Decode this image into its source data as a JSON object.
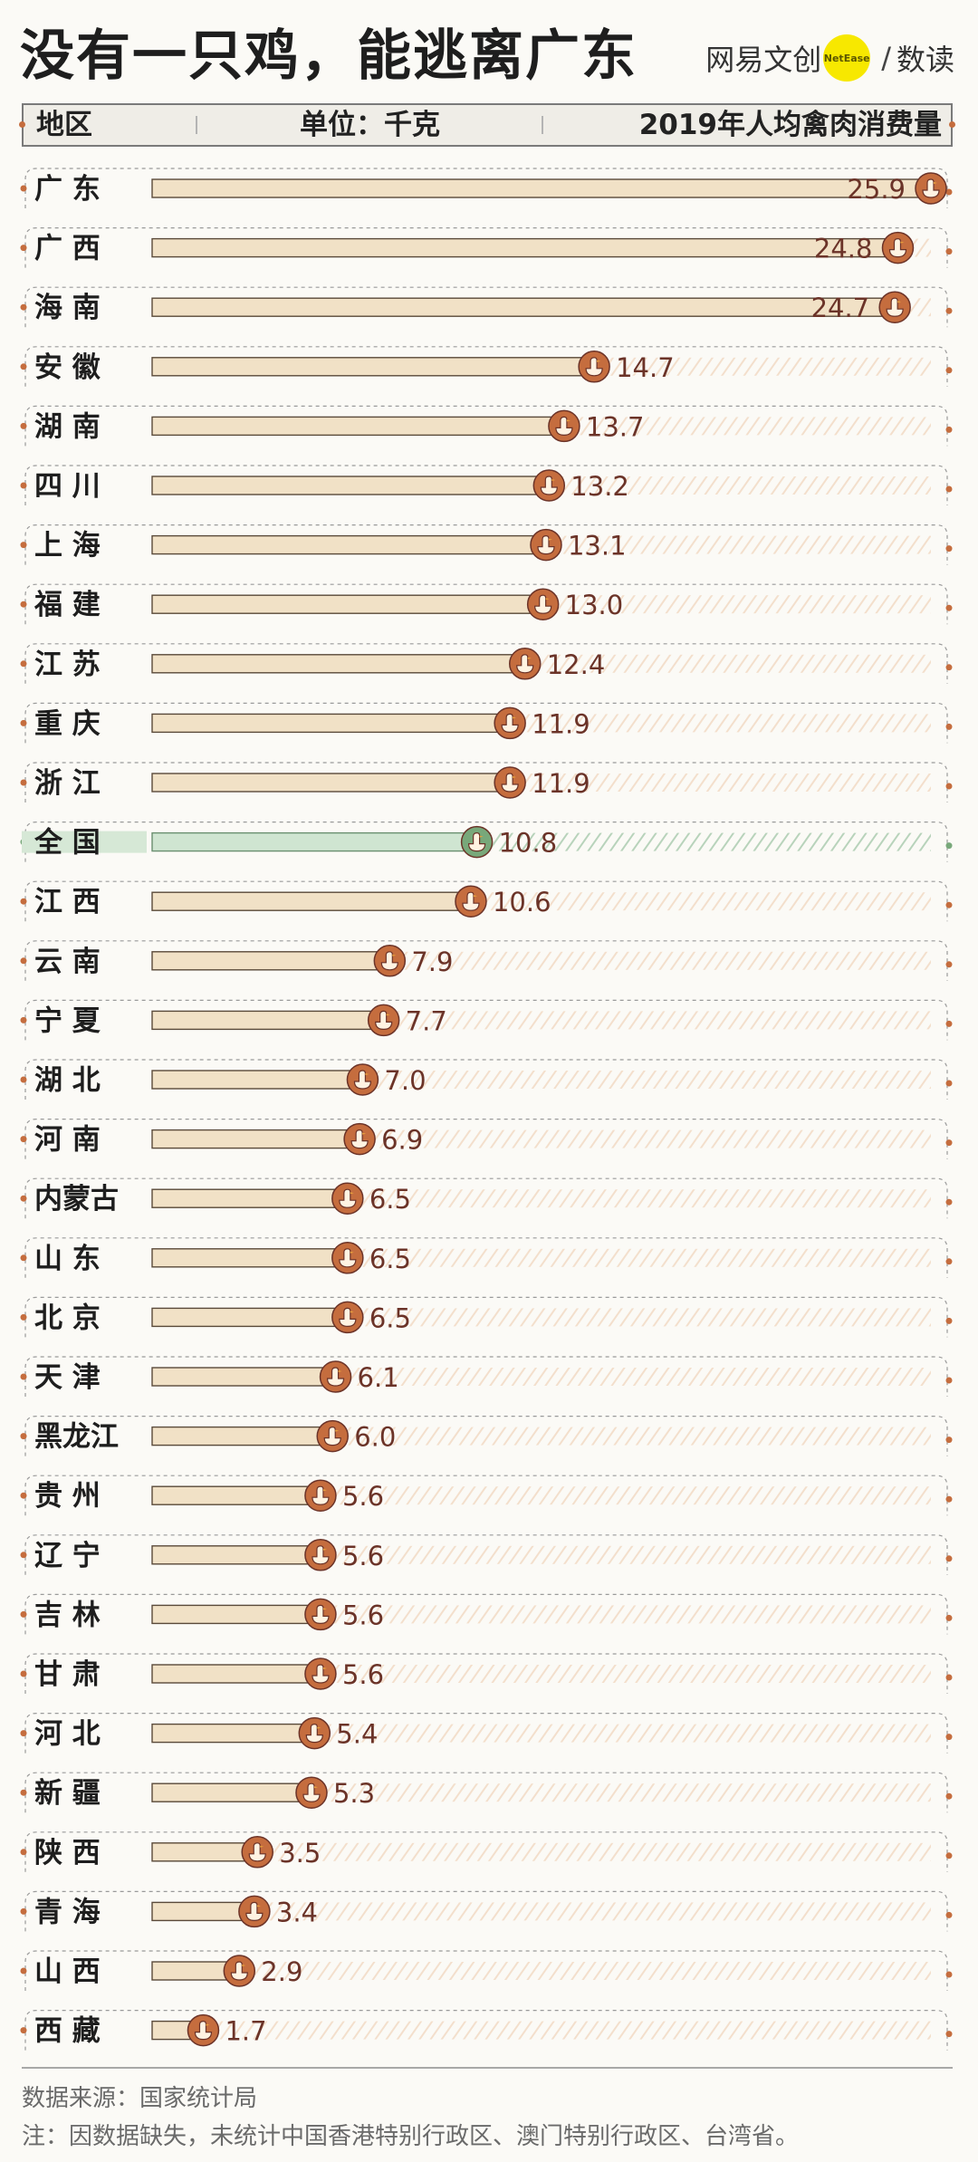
{
  "title": "没有一只鸡，能逃离广东",
  "brand": {
    "name": "网易文创",
    "badge": "NetEase",
    "sub": "数读"
  },
  "header": {
    "region": "地区",
    "unit": "单位：千克",
    "metric": "2019年人均禽肉消费量"
  },
  "chart_data": {
    "type": "bar",
    "orientation": "horizontal",
    "title": "没有一只鸡，能逃离广东",
    "xlabel": "2019年人均禽肉消费量",
    "unit": "单位：千克",
    "xlim": [
      0,
      25.9
    ],
    "categories": [
      "广 东",
      "广 西",
      "海 南",
      "安 徽",
      "湖 南",
      "四 川",
      "上 海",
      "福 建",
      "江 苏",
      "重 庆",
      "浙 江",
      "全 国",
      "江 西",
      "云 南",
      "宁 夏",
      "湖 北",
      "河 南",
      "内蒙古",
      "山 东",
      "北 京",
      "天 津",
      "黑龙江",
      "贵 州",
      "辽 宁",
      "吉 林",
      "甘 肃",
      "河 北",
      "新 疆",
      "陕 西",
      "青 海",
      "山 西",
      "西 藏"
    ],
    "values": [
      25.9,
      24.8,
      24.7,
      14.7,
      13.7,
      13.2,
      13.1,
      13.0,
      12.4,
      11.9,
      11.9,
      10.8,
      10.6,
      7.9,
      7.7,
      7.0,
      6.9,
      6.5,
      6.5,
      6.5,
      6.1,
      6.0,
      5.6,
      5.6,
      5.6,
      5.6,
      5.4,
      5.3,
      3.5,
      3.4,
      2.9,
      1.7
    ],
    "labels": [
      "25.9",
      "24.8",
      "24.7",
      "14.7",
      "13.7",
      "13.2",
      "13.1",
      "13.0",
      "12.4",
      "11.9",
      "11.9",
      "10.8",
      "10.6",
      "7.9",
      "7.7",
      "7.0",
      "6.9",
      "6.5",
      "6.5",
      "6.5",
      "6.1",
      "6.0",
      "5.6",
      "5.6",
      "5.6",
      "5.6",
      "5.4",
      "5.3",
      "3.5",
      "3.4",
      "2.9",
      "1.7"
    ],
    "highlight": "全 国",
    "colors": {
      "bar": "#f1e1c6",
      "bar_stroke": "#5a4a3a",
      "highlight_bar": "#cfe5d1",
      "highlight_stroke": "#6a8f70",
      "value_text": "#6b3328",
      "icon": "#c56d3e",
      "highlight_icon": "#78a87a",
      "stripe": "#f3dfcc",
      "highlight_stripe": "#b8d3bb",
      "bracket": "#9a9a9a"
    },
    "grid": false
  },
  "source": "数据来源：国家统计局",
  "footnote": "注：因数据缺失，未统计中国香港特别行政区、澳门特别行政区、台湾省。"
}
